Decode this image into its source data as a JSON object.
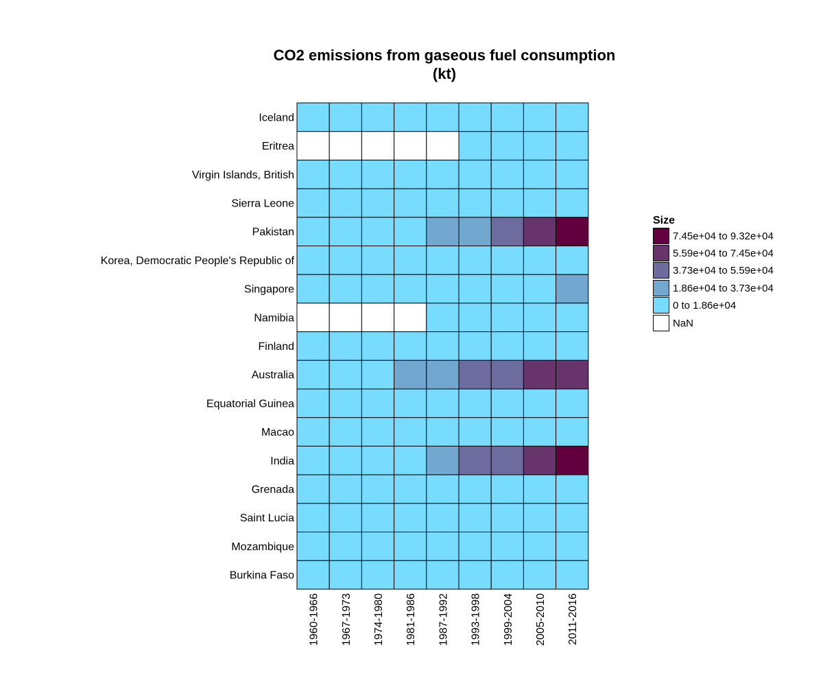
{
  "chart_data": {
    "type": "heatmap",
    "title": "CO2 emissions from gaseous fuel consumption",
    "title_line2": "(kt)",
    "categories_x": [
      "1960-1966",
      "1967-1973",
      "1974-1980",
      "1981-1986",
      "1987-1992",
      "1993-1998",
      "1999-2004",
      "2005-2010",
      "2011-2016"
    ],
    "categories_y": [
      "Iceland",
      "Eritrea",
      "Virgin Islands, British",
      "Sierra Leone",
      "Pakistan",
      "Korea, Democratic People's Republic of",
      "Singapore",
      "Namibia",
      "Finland",
      "Australia",
      "Equatorial Guinea",
      "Macao",
      "India",
      "Grenada",
      "Saint Lucia",
      "Mozambique",
      "Burkina Faso"
    ],
    "bins": [
      {
        "label": "NaN",
        "color": "#ffffff"
      },
      {
        "label": "0 to 1.86e+04",
        "color": "#77dcff"
      },
      {
        "label": "1.86e+04 to 3.73e+04",
        "color": "#72a7d0"
      },
      {
        "label": "3.73e+04 to 5.59e+04",
        "color": "#6e6b9e"
      },
      {
        "label": "5.59e+04 to 7.45e+04",
        "color": "#67346b"
      },
      {
        "label": "7.45e+04 to 9.32e+04",
        "color": "#620040"
      }
    ],
    "values_bin_index": [
      [
        1,
        1,
        1,
        1,
        1,
        1,
        1,
        1,
        1
      ],
      [
        0,
        0,
        0,
        0,
        0,
        1,
        1,
        1,
        1
      ],
      [
        1,
        1,
        1,
        1,
        1,
        1,
        1,
        1,
        1
      ],
      [
        1,
        1,
        1,
        1,
        1,
        1,
        1,
        1,
        1
      ],
      [
        1,
        1,
        1,
        1,
        2,
        2,
        3,
        4,
        5
      ],
      [
        1,
        1,
        1,
        1,
        1,
        1,
        1,
        1,
        1
      ],
      [
        1,
        1,
        1,
        1,
        1,
        1,
        1,
        1,
        2
      ],
      [
        0,
        0,
        0,
        0,
        1,
        1,
        1,
        1,
        1
      ],
      [
        1,
        1,
        1,
        1,
        1,
        1,
        1,
        1,
        1
      ],
      [
        1,
        1,
        1,
        2,
        2,
        3,
        3,
        4,
        4
      ],
      [
        1,
        1,
        1,
        1,
        1,
        1,
        1,
        1,
        1
      ],
      [
        1,
        1,
        1,
        1,
        1,
        1,
        1,
        1,
        1
      ],
      [
        1,
        1,
        1,
        1,
        2,
        3,
        3,
        4,
        5
      ],
      [
        1,
        1,
        1,
        1,
        1,
        1,
        1,
        1,
        1
      ],
      [
        1,
        1,
        1,
        1,
        1,
        1,
        1,
        1,
        1
      ],
      [
        1,
        1,
        1,
        1,
        1,
        1,
        1,
        1,
        1
      ],
      [
        1,
        1,
        1,
        1,
        1,
        1,
        1,
        1,
        1
      ]
    ],
    "legend": {
      "title": "Size",
      "placement": "right",
      "entries": [
        "7.45e+04 to 9.32e+04",
        "5.59e+04 to 7.45e+04",
        "3.73e+04 to 5.59e+04",
        "1.86e+04 to 3.73e+04",
        "0 to 1.86e+04",
        "NaN"
      ],
      "colors": [
        "#620040",
        "#67346b",
        "#6e6b9e",
        "#72a7d0",
        "#77dcff",
        "#ffffff"
      ]
    },
    "grid": false
  }
}
